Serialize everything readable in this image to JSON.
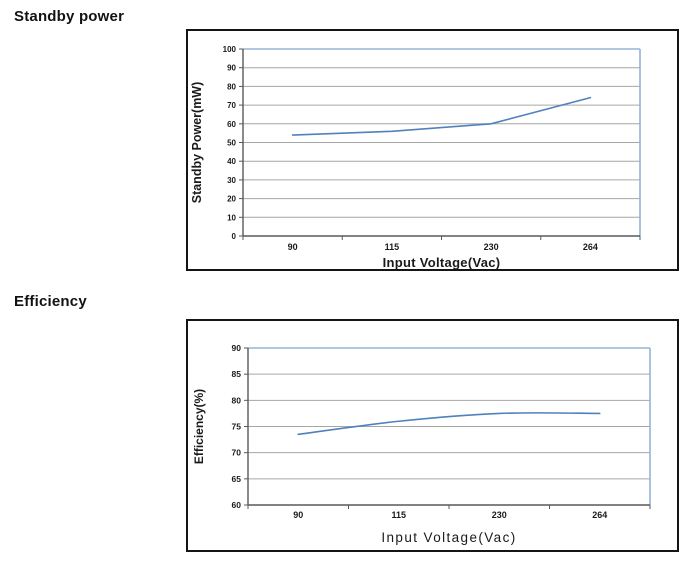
{
  "page": {
    "background": "#ffffff"
  },
  "sections": [
    {
      "heading": "Standby power"
    },
    {
      "heading": "Efficiency"
    }
  ],
  "chart_data": [
    {
      "type": "line",
      "categories": [
        "90",
        "115",
        "230",
        "264"
      ],
      "values": [
        54,
        56,
        60,
        74
      ],
      "title": "",
      "xlabel": "Input Voltage(Vac)",
      "ylabel": "Standby Power(mW)",
      "ylim": [
        0,
        100
      ],
      "ystep": 10,
      "grid": true,
      "legend": "none",
      "smooth": false,
      "line_color": "#4f81bd",
      "plot_border_color": "#95b3d7",
      "grid_color": "#a6a6a6",
      "axis_color": "#595959",
      "text_color": "#1a1a1a"
    },
    {
      "type": "line",
      "categories": [
        "90",
        "115",
        "230",
        "264"
      ],
      "values": [
        73.5,
        76,
        77.5,
        77.5
      ],
      "title": "",
      "xlabel": "Input Voltage(Vac)",
      "ylabel": "Efficiency(%)",
      "ylim": [
        60,
        90
      ],
      "ystep": 5,
      "grid": true,
      "legend": "none",
      "smooth": true,
      "line_color": "#4f81bd",
      "plot_border_color": "#95b3d7",
      "grid_color": "#a6a6a6",
      "axis_color": "#595959",
      "text_color": "#1a1a1a"
    }
  ]
}
